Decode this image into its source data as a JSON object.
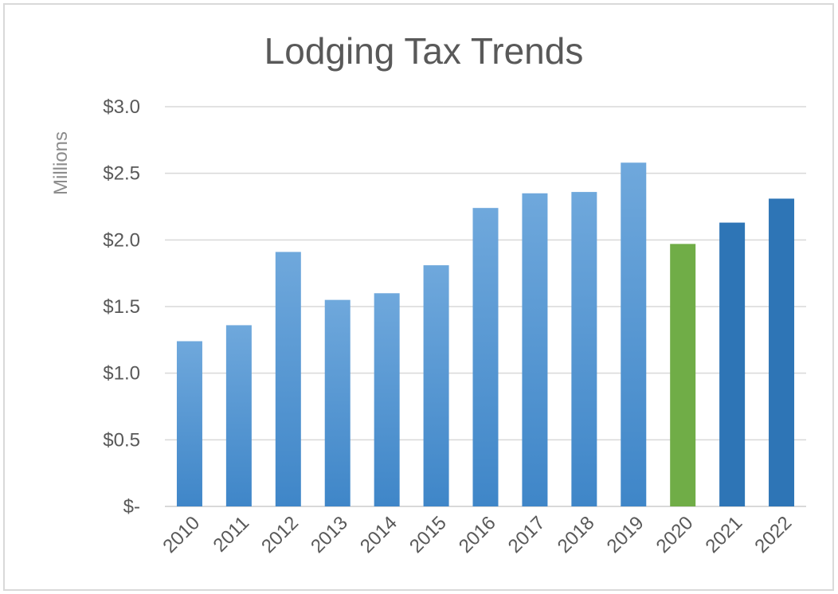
{
  "chart_data": {
    "type": "bar",
    "title": "Lodging Tax Trends",
    "xlabel": "",
    "ylabel": "Millions",
    "categories": [
      "2010",
      "2011",
      "2012",
      "2013",
      "2014",
      "2015",
      "2016",
      "2017",
      "2018",
      "2019",
      "2020",
      "2021",
      "2022"
    ],
    "values": [
      1.24,
      1.36,
      1.91,
      1.55,
      1.6,
      1.81,
      2.24,
      2.35,
      2.36,
      2.58,
      1.97,
      2.13,
      2.31
    ],
    "ylim": [
      0,
      3.0
    ],
    "yticks": [
      0,
      0.5,
      1.0,
      1.5,
      2.0,
      2.5,
      3.0
    ],
    "ytick_labels": [
      "$-",
      "$0.5",
      "$1.0",
      "$1.5",
      "$2.0",
      "$2.5",
      "$3.0"
    ],
    "grid": true,
    "legend": "none",
    "colors": {
      "default": "#5b9bd5",
      "highlight_2020": "#70ad47",
      "recent_2021_2022": "#2e75b6",
      "gridline": "#d9d9d9"
    },
    "bar_color_keys": [
      "default",
      "default",
      "default",
      "default",
      "default",
      "default",
      "default",
      "default",
      "default",
      "default",
      "highlight_2020",
      "recent_2021_2022",
      "recent_2021_2022"
    ]
  }
}
